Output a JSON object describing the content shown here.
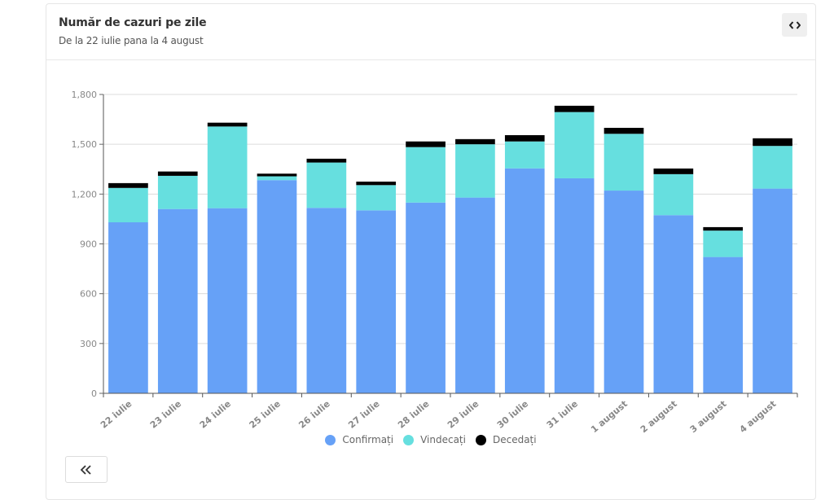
{
  "card": {
    "title": "Număr de cazuri pe zile",
    "subtitle": "De la 22 iulie pana la 4 august",
    "expand_icon": "code-brackets-icon",
    "collapse_icon": "double-chevron-left-icon"
  },
  "colors": {
    "confirmed": "#66a1f7",
    "recovered": "#66dfdf",
    "deceased": "#000000"
  },
  "chart_data": {
    "type": "bar",
    "stacked": true,
    "title": "Număr de cazuri pe zile",
    "subtitle": "De la 22 iulie pana la 4 august",
    "xlabel": "",
    "ylabel": "",
    "ylim": [
      0,
      1800
    ],
    "yticks": [
      0,
      300,
      600,
      900,
      1200,
      1500,
      1800
    ],
    "ytick_labels": [
      "0",
      "300",
      "600",
      "900",
      "1,200",
      "1,500",
      "1,800"
    ],
    "grid": true,
    "legend_position": "bottom-center",
    "categories": [
      "22 iulie",
      "23 iulie",
      "24 iulie",
      "25 iulie",
      "26 iulie",
      "27 iulie",
      "28 iulie",
      "29 iulie",
      "30 iulie",
      "31 iulie",
      "1 august",
      "2 august",
      "3 august",
      "4 august"
    ],
    "series": [
      {
        "name": "Confirmați",
        "color": "#66a1f7",
        "values": [
          1030,
          1110,
          1115,
          1284,
          1117,
          1102,
          1149,
          1179,
          1355,
          1295,
          1221,
          1073,
          821,
          1233
        ]
      },
      {
        "name": "Vindecați",
        "color": "#66dfdf",
        "values": [
          207,
          200,
          492,
          23,
          273,
          152,
          334,
          321,
          162,
          399,
          342,
          247,
          159,
          257
        ]
      },
      {
        "name": "Decedați",
        "color": "#000000",
        "values": [
          29,
          26,
          23,
          16,
          23,
          21,
          34,
          31,
          38,
          38,
          36,
          34,
          21,
          46
        ]
      }
    ]
  }
}
